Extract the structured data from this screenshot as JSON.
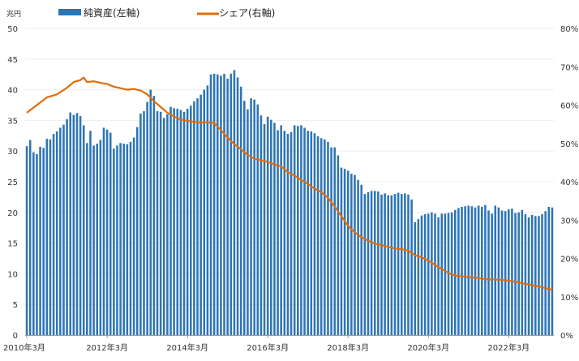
{
  "chart_data": {
    "type": "bar+line",
    "y_left_unit": "兆円",
    "y_left_range": [
      0,
      50
    ],
    "y_left_ticks": [
      0,
      5,
      10,
      15,
      20,
      25,
      30,
      35,
      40,
      45,
      50
    ],
    "y_right_range": [
      0,
      80
    ],
    "y_right_ticks": [
      "0%",
      "10%",
      "20%",
      "30%",
      "40%",
      "50%",
      "60%",
      "70%",
      "80%"
    ],
    "x_tick_labels": [
      "2010年3月",
      "2012年3月",
      "2014年3月",
      "2016年3月",
      "2018年3月",
      "2020年3月",
      "2022年3月"
    ],
    "grid": "horizontal",
    "legend_position": "top-left",
    "series": [
      {
        "name": "純資産(左軸)",
        "type": "bar",
        "axis": "left",
        "color": "#2e75b6",
        "anchors": [
          [
            0,
            30.8
          ],
          [
            1,
            31.8
          ],
          [
            2,
            29.8
          ],
          [
            3,
            29.5
          ],
          [
            4,
            30.7
          ],
          [
            5,
            30.5
          ],
          [
            6,
            32.0
          ],
          [
            7,
            31.9
          ],
          [
            8,
            32.8
          ],
          [
            9,
            33.2
          ],
          [
            10,
            33.8
          ],
          [
            11,
            34.3
          ],
          [
            12,
            35.2
          ],
          [
            13,
            36.3
          ],
          [
            14,
            35.9
          ],
          [
            15,
            36.2
          ],
          [
            16,
            35.7
          ],
          [
            17,
            34.2
          ],
          [
            18,
            31.3
          ],
          [
            19,
            33.3
          ],
          [
            20,
            30.9
          ],
          [
            21,
            31.2
          ],
          [
            22,
            31.8
          ],
          [
            23,
            33.8
          ],
          [
            24,
            33.5
          ],
          [
            25,
            33.0
          ],
          [
            26,
            30.4
          ],
          [
            27,
            30.9
          ],
          [
            28,
            31.3
          ],
          [
            29,
            31.2
          ],
          [
            30,
            31.1
          ],
          [
            31,
            31.5
          ],
          [
            32,
            32.2
          ],
          [
            33,
            33.9
          ],
          [
            34,
            36.1
          ],
          [
            35,
            36.5
          ],
          [
            36,
            38.0
          ],
          [
            37,
            40.0
          ],
          [
            38,
            39.0
          ],
          [
            39,
            36.5
          ],
          [
            40,
            36.4
          ],
          [
            41,
            35.4
          ],
          [
            42,
            36.0
          ],
          [
            43,
            37.2
          ],
          [
            44,
            37.0
          ],
          [
            45,
            36.9
          ],
          [
            46,
            36.7
          ],
          [
            47,
            36.4
          ],
          [
            48,
            36.9
          ],
          [
            49,
            37.4
          ],
          [
            50,
            38.1
          ],
          [
            51,
            38.6
          ],
          [
            52,
            39.2
          ],
          [
            53,
            40.0
          ],
          [
            54,
            40.7
          ],
          [
            55,
            42.5
          ],
          [
            56,
            42.6
          ],
          [
            57,
            42.5
          ],
          [
            58,
            42.3
          ],
          [
            59,
            42.6
          ],
          [
            60,
            41.8
          ],
          [
            61,
            42.6
          ],
          [
            62,
            43.2
          ],
          [
            63,
            42.0
          ],
          [
            64,
            40.5
          ],
          [
            65,
            38.2
          ],
          [
            66,
            36.8
          ],
          [
            67,
            38.6
          ],
          [
            68,
            38.4
          ],
          [
            69,
            37.6
          ],
          [
            70,
            35.8
          ],
          [
            71,
            34.4
          ],
          [
            72,
            35.6
          ],
          [
            73,
            35.1
          ],
          [
            74,
            34.6
          ],
          [
            75,
            33.4
          ],
          [
            76,
            34.2
          ],
          [
            77,
            33.3
          ],
          [
            78,
            32.8
          ],
          [
            79,
            33.1
          ],
          [
            80,
            34.2
          ],
          [
            81,
            34.1
          ],
          [
            82,
            34.2
          ],
          [
            83,
            33.8
          ],
          [
            84,
            33.3
          ],
          [
            85,
            33.2
          ],
          [
            86,
            32.9
          ],
          [
            87,
            32.4
          ],
          [
            88,
            32.1
          ],
          [
            89,
            31.9
          ],
          [
            90,
            31.5
          ],
          [
            91,
            30.6
          ],
          [
            92,
            30.6
          ],
          [
            93,
            29.3
          ],
          [
            94,
            27.3
          ],
          [
            95,
            27.1
          ],
          [
            96,
            26.8
          ],
          [
            97,
            26.3
          ],
          [
            98,
            26.1
          ],
          [
            99,
            25.3
          ],
          [
            100,
            24.5
          ],
          [
            101,
            23.0
          ],
          [
            102,
            23.3
          ],
          [
            103,
            23.5
          ],
          [
            104,
            23.5
          ],
          [
            105,
            23.4
          ],
          [
            106,
            22.9
          ],
          [
            107,
            23.1
          ],
          [
            108,
            22.8
          ],
          [
            109,
            22.8
          ],
          [
            110,
            23.0
          ],
          [
            111,
            23.2
          ],
          [
            112,
            23.0
          ],
          [
            113,
            23.1
          ],
          [
            114,
            22.9
          ],
          [
            115,
            22.1
          ],
          [
            116,
            18.4
          ],
          [
            117,
            18.9
          ],
          [
            118,
            19.5
          ],
          [
            119,
            19.7
          ],
          [
            120,
            19.8
          ],
          [
            121,
            20.0
          ],
          [
            122,
            19.8
          ],
          [
            123,
            19.2
          ],
          [
            124,
            19.8
          ],
          [
            125,
            19.8
          ],
          [
            126,
            19.9
          ],
          [
            127,
            20.0
          ],
          [
            128,
            20.4
          ],
          [
            129,
            20.7
          ],
          [
            130,
            20.9
          ],
          [
            131,
            21.0
          ],
          [
            132,
            21.1
          ],
          [
            133,
            21.0
          ],
          [
            134,
            20.8
          ],
          [
            135,
            21.1
          ],
          [
            136,
            20.9
          ],
          [
            137,
            21.2
          ],
          [
            138,
            20.3
          ],
          [
            139,
            19.8
          ],
          [
            140,
            21.1
          ],
          [
            141,
            20.8
          ],
          [
            142,
            20.3
          ],
          [
            143,
            20.2
          ],
          [
            144,
            20.5
          ],
          [
            145,
            20.6
          ],
          [
            146,
            19.9
          ],
          [
            147,
            20.0
          ],
          [
            148,
            20.4
          ],
          [
            149,
            19.7
          ],
          [
            150,
            19.2
          ],
          [
            151,
            19.6
          ],
          [
            152,
            19.4
          ],
          [
            153,
            19.4
          ],
          [
            154,
            19.7
          ],
          [
            155,
            20.2
          ],
          [
            156,
            20.9
          ],
          [
            157,
            20.8
          ]
        ]
      },
      {
        "name": "シェア(右軸)",
        "type": "line",
        "axis": "right",
        "color": "#e36c0a",
        "anchors": [
          [
            0,
            58.0
          ],
          [
            3,
            60.0
          ],
          [
            6,
            62.0
          ],
          [
            9,
            62.8
          ],
          [
            12,
            64.5
          ],
          [
            14,
            66.0
          ],
          [
            16,
            66.5
          ],
          [
            17,
            67.2
          ],
          [
            18,
            66.0
          ],
          [
            20,
            66.2
          ],
          [
            22,
            65.8
          ],
          [
            24,
            65.5
          ],
          [
            26,
            64.8
          ],
          [
            28,
            64.4
          ],
          [
            30,
            64.0
          ],
          [
            32,
            64.2
          ],
          [
            34,
            63.8
          ],
          [
            36,
            62.8
          ],
          [
            38,
            61.0
          ],
          [
            40,
            59.5
          ],
          [
            42,
            58.0
          ],
          [
            44,
            57.0
          ],
          [
            46,
            56.2
          ],
          [
            48,
            55.9
          ],
          [
            50,
            55.6
          ],
          [
            52,
            55.4
          ],
          [
            54,
            55.5
          ],
          [
            56,
            55.3
          ],
          [
            58,
            53.5
          ],
          [
            60,
            51.5
          ],
          [
            62,
            49.8
          ],
          [
            64,
            48.5
          ],
          [
            66,
            47.0
          ],
          [
            68,
            46.0
          ],
          [
            70,
            45.6
          ],
          [
            72,
            45.2
          ],
          [
            74,
            44.5
          ],
          [
            76,
            44.0
          ],
          [
            78,
            42.5
          ],
          [
            80,
            41.6
          ],
          [
            82,
            40.5
          ],
          [
            84,
            39.4
          ],
          [
            86,
            38.2
          ],
          [
            88,
            37.3
          ],
          [
            90,
            35.8
          ],
          [
            92,
            33.5
          ],
          [
            94,
            31.0
          ],
          [
            96,
            28.5
          ],
          [
            98,
            26.8
          ],
          [
            100,
            25.5
          ],
          [
            102,
            24.6
          ],
          [
            104,
            23.8
          ],
          [
            106,
            23.5
          ],
          [
            108,
            23.0
          ],
          [
            110,
            22.6
          ],
          [
            112,
            22.4
          ],
          [
            114,
            22.0
          ],
          [
            116,
            20.8
          ],
          [
            118,
            20.3
          ],
          [
            120,
            19.4
          ],
          [
            122,
            18.3
          ],
          [
            124,
            17.2
          ],
          [
            126,
            16.2
          ],
          [
            128,
            15.5
          ],
          [
            130,
            15.3
          ],
          [
            132,
            15.1
          ],
          [
            134,
            15.0
          ],
          [
            136,
            14.7
          ],
          [
            138,
            14.5
          ],
          [
            140,
            14.5
          ],
          [
            142,
            14.4
          ],
          [
            144,
            14.2
          ],
          [
            146,
            13.9
          ],
          [
            148,
            13.5
          ],
          [
            150,
            13.2
          ],
          [
            152,
            12.8
          ],
          [
            154,
            12.5
          ],
          [
            156,
            12.0
          ],
          [
            157,
            11.8
          ]
        ]
      }
    ]
  }
}
